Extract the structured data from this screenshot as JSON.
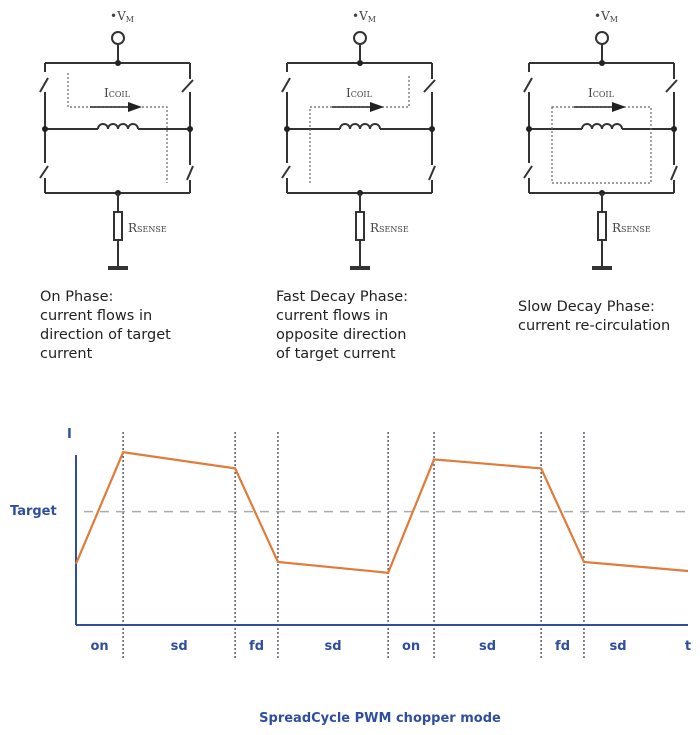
{
  "circuits": [
    {
      "supply_label": "•V",
      "supply_sub": "M",
      "coil_label": "I",
      "coil_sub": "COIL",
      "sense_label": "R",
      "sense_sub": "SENSE",
      "current_path": "on",
      "caption": "On Phase:\ncurrent flows in\ndirection of target\ncurrent"
    },
    {
      "supply_label": "•V",
      "supply_sub": "M",
      "coil_label": "I",
      "coil_sub": "COIL",
      "sense_label": "R",
      "sense_sub": "SENSE",
      "current_path": "fast-decay",
      "caption": "Fast Decay Phase:\ncurrent flows in\nopposite direction\nof target current"
    },
    {
      "supply_label": "•V",
      "supply_sub": "M",
      "coil_label": "I",
      "coil_sub": "COIL",
      "sense_label": "R",
      "sense_sub": "SENSE",
      "current_path": "slow-decay",
      "caption": "Slow Decay Phase:\ncurrent re-circulation"
    }
  ],
  "chart_data": {
    "type": "line",
    "title": "SpreadCycle PWM chopper mode",
    "ylabel": "I",
    "xlabel": "t",
    "target_label": "Target",
    "target_value": 63,
    "xlim": [
      0,
      100
    ],
    "ylim": [
      0,
      100
    ],
    "grid": false,
    "points": [
      [
        0,
        34
      ],
      [
        7.7,
        96
      ],
      [
        26,
        87
      ],
      [
        33,
        35
      ],
      [
        51,
        29
      ],
      [
        58.5,
        92
      ],
      [
        76,
        87
      ],
      [
        83,
        35
      ],
      [
        100,
        30
      ]
    ],
    "phase_boundaries": [
      7.7,
      26,
      33,
      51,
      58.5,
      76,
      83
    ],
    "phases": [
      "on",
      "sd",
      "fd",
      "sd",
      "on",
      "sd",
      "fd",
      "sd"
    ],
    "colors": {
      "axis": "#2f4f9e",
      "current": "#e07b39",
      "target": "#aaaaaa",
      "labels": "#2f4f9e"
    }
  }
}
